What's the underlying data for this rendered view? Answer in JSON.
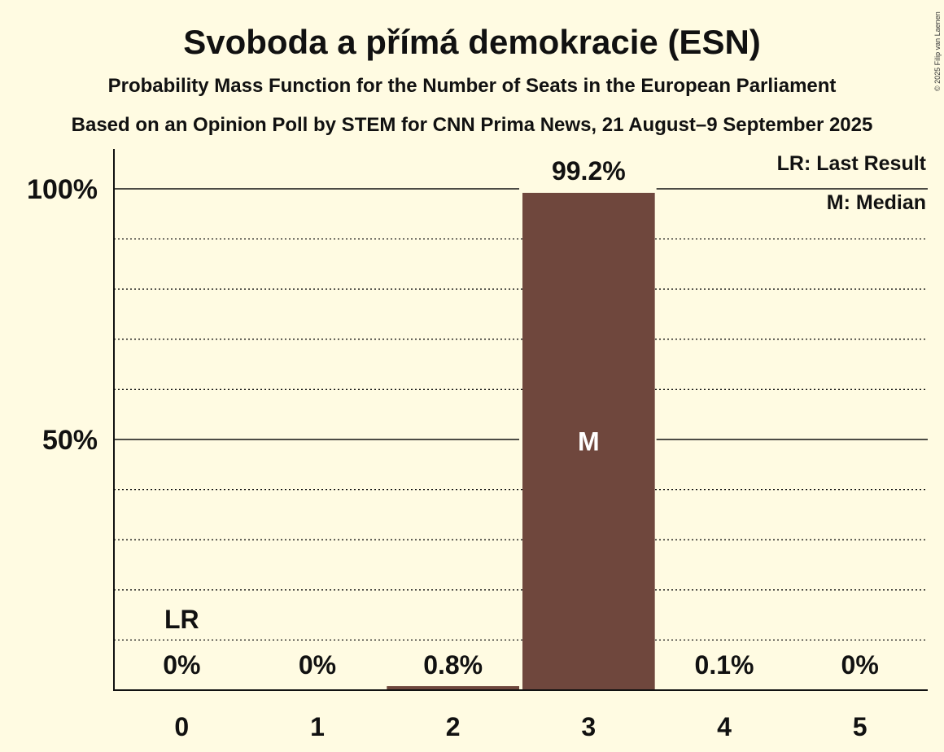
{
  "colors": {
    "background": "#fffbe2",
    "bar": "#6f473d",
    "text": "#111111",
    "median_text": "#ffffff"
  },
  "copyright": "© 2025 Filip van Laenen",
  "chart_data": {
    "type": "bar",
    "title": "Svoboda a přímá demokracie (ESN)",
    "subtitle": "Probability Mass Function for the Number of Seats in the European Parliament",
    "subtitle2": "Based on an Opinion Poll by STEM for CNN Prima News, 21 August–9 September 2025",
    "xlabel": "",
    "ylabel": "",
    "categories": [
      "0",
      "1",
      "2",
      "3",
      "4",
      "5"
    ],
    "values": [
      0,
      0,
      0.8,
      99.2,
      0.1,
      0
    ],
    "data_labels": [
      "0%",
      "0%",
      "0.8%",
      "99.2%",
      "0.1%",
      "0%"
    ],
    "ylim": [
      0,
      108
    ],
    "yticks": [
      {
        "value": 50,
        "label": "50%"
      },
      {
        "value": 100,
        "label": "100%"
      }
    ],
    "minor_grid_step": 10,
    "last_result": {
      "category": "0",
      "label": "LR"
    },
    "median": {
      "category": "3",
      "label": "M"
    },
    "legend": [
      "LR: Last Result",
      "M: Median"
    ],
    "legend_position": "top-right"
  }
}
